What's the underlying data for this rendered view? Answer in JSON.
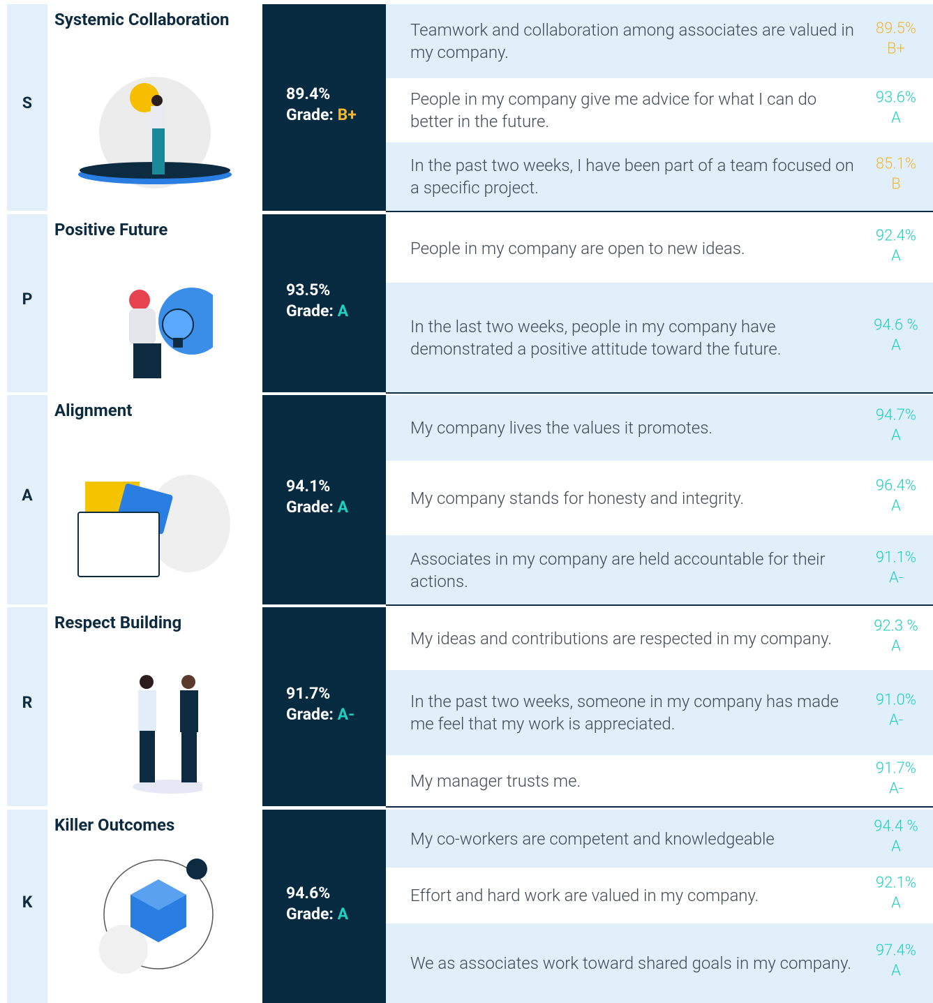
{
  "grade_label": "Grade:",
  "sections": [
    {
      "letter": "S",
      "title": "Systemic Collaboration",
      "score": "89.4%",
      "grade": "B+",
      "grade_color": "#f2b632",
      "items": [
        {
          "text": "Teamwork and collaboration among associates are valued in my company.",
          "score": "89.5%",
          "grade": "B+",
          "color": "#f2b632"
        },
        {
          "text": "People in my company give me advice for what I can do better in the future.",
          "score": "93.6%",
          "grade": "A",
          "color": "#1fcfc0"
        },
        {
          "text": "In the past two weeks, I have been part of a team focused on a specific project.",
          "score": "85.1%",
          "grade": "B",
          "color": "#f2b632"
        }
      ]
    },
    {
      "letter": "P",
      "title": "Positive Future",
      "score": "93.5%",
      "grade": "A",
      "grade_color": "#1fcfc0",
      "items": [
        {
          "text": "People in my company are open to new ideas.",
          "score": "92.4%",
          "grade": "A",
          "color": "#1fcfc0"
        },
        {
          "text": "In the last two weeks, people in my company have demonstrated a positive attitude toward the future.",
          "score": "94.6 %",
          "grade": "A",
          "color": "#1fcfc0"
        }
      ]
    },
    {
      "letter": "A",
      "title": "Alignment",
      "score": "94.1%",
      "grade": "A",
      "grade_color": "#1fcfc0",
      "items": [
        {
          "text": "My company lives the values it promotes.",
          "score": "94.7%",
          "grade": "A",
          "color": "#1fcfc0"
        },
        {
          "text": "My company stands for honesty and integrity.",
          "score": "96.4%",
          "grade": "A",
          "color": "#1fcfc0"
        },
        {
          "text": "Associates in my company are held accountable for their actions.",
          "score": "91.1%",
          "grade": "A-",
          "color": "#1fcfc0"
        }
      ]
    },
    {
      "letter": "R",
      "title": "Respect Building",
      "score": "91.7%",
      "grade": "A-",
      "grade_color": "#1fcfc0",
      "items": [
        {
          "text": "My ideas and contributions are respected in my company.",
          "score": "92.3 %",
          "grade": "A",
          "color": "#1fcfc0"
        },
        {
          "text": "In the past two weeks, someone in my company has made me feel that my work is appreciated.",
          "score": "91.0%",
          "grade": "A-",
          "color": "#1fcfc0"
        },
        {
          "text": "My manager trusts me.",
          "score": "91.7%",
          "grade": "A-",
          "color": "#1fcfc0"
        }
      ]
    },
    {
      "letter": "K",
      "title": "Killer Outcomes",
      "score": "94.6%",
      "grade": "A",
      "grade_color": "#1fcfc0",
      "items": [
        {
          "text": "My co-workers are competent and knowledgeable",
          "score": "94.4 %",
          "grade": "A",
          "color": "#1fcfc0"
        },
        {
          "text": "Effort and hard work are valued in my company.",
          "score": "92.1%",
          "grade": "A",
          "color": "#1fcfc0"
        },
        {
          "text": "We as associates work toward shared goals in my company.",
          "score": "97.4%",
          "grade": "A",
          "color": "#1fcfc0"
        }
      ]
    }
  ]
}
